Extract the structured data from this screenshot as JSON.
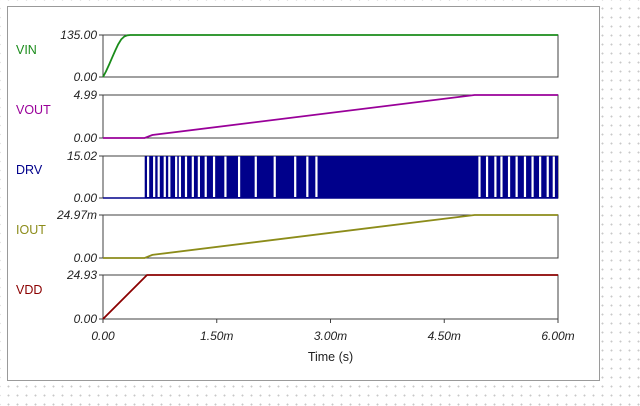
{
  "chart_data": {
    "type": "line",
    "xlabel": "Time (s)",
    "x_ticks": [
      "0.00",
      "1.50m",
      "3.00m",
      "4.50m",
      "6.00m"
    ],
    "x_range": [
      0,
      6.0
    ],
    "x_units": "ms",
    "panels": [
      {
        "name": "VIN",
        "color": "#1a8c1a",
        "tick_labels": [
          "135.00",
          "0.00"
        ],
        "ylim": [
          0,
          135.0
        ],
        "x": [
          0,
          0.04,
          0.08,
          0.12,
          0.16,
          0.2,
          0.24,
          0.28,
          0.32,
          0.36,
          6.0
        ],
        "y": [
          0,
          18,
          40,
          62,
          84,
          105,
          121,
          130,
          134,
          135,
          135
        ]
      },
      {
        "name": "VOUT",
        "color": "#990099",
        "tick_labels": [
          "4.99",
          "0.00"
        ],
        "ylim": [
          0,
          4.99
        ],
        "x": [
          0,
          0.55,
          0.65,
          4.9,
          6.0
        ],
        "y": [
          0,
          0,
          0.35,
          4.99,
          4.99
        ]
      },
      {
        "name": "DRV",
        "color": "#00008b",
        "tick_labels": [
          "15.02",
          "0.00"
        ],
        "ylim": [
          0,
          15.02
        ],
        "pulse_start": 0.55,
        "pulse_end": 6.0,
        "high": 15.02,
        "pulse_gaps": [
          0.58,
          0.66,
          0.72,
          0.8,
          0.86,
          0.95,
          1.0,
          1.08,
          1.17,
          1.25,
          1.34,
          1.45,
          1.6,
          1.78,
          2.0,
          2.25,
          2.52,
          2.68,
          2.8,
          4.95,
          5.05,
          5.16,
          5.24,
          5.34,
          5.44,
          5.55,
          5.65,
          5.75,
          5.85,
          5.93
        ]
      },
      {
        "name": "IOUT",
        "color": "#8c8c1a",
        "tick_labels": [
          "24.97m",
          "0.00"
        ],
        "ylim": [
          0,
          24.97
        ],
        "x": [
          0,
          0.55,
          0.65,
          4.9,
          6.0
        ],
        "y": [
          0,
          0,
          1.8,
          24.97,
          24.97
        ]
      },
      {
        "name": "VDD",
        "color": "#8b0000",
        "tick_labels": [
          "24.93",
          "0.00"
        ],
        "ylim": [
          0,
          24.93
        ],
        "x": [
          0,
          0.58,
          6.0
        ],
        "y": [
          0,
          24.93,
          24.93
        ]
      }
    ]
  }
}
